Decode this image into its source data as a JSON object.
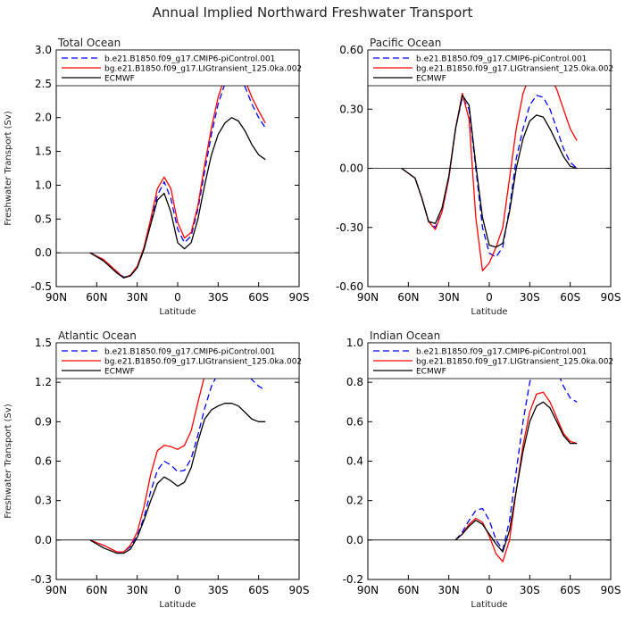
{
  "figure": {
    "title": "Annual Implied Northward Freshwater Transport"
  },
  "chart_data": [
    {
      "type": "line",
      "title": "Total Ocean",
      "xlabel": "Latitude",
      "ylabel": "Freshwater Transport (Sv)",
      "xlim": [
        90,
        -90
      ],
      "ylim": [
        -0.5,
        3.0
      ],
      "xticks": [
        90,
        60,
        30,
        0,
        -30,
        -60,
        -90
      ],
      "xtick_labels": [
        "90N",
        "60N",
        "30N",
        "0",
        "30S",
        "60S",
        "90S"
      ],
      "yticks": [
        -0.5,
        0.0,
        0.5,
        1.0,
        1.5,
        2.0,
        2.5,
        3.0
      ],
      "ytick_labels": [
        "-0.5",
        "0.0",
        "0.5",
        "1.0",
        "1.5",
        "2.0",
        "2.5",
        "3.0"
      ],
      "legend_position": "top",
      "series": [
        {
          "name": "b.e21.B1850.f09_g17.CMIP6-piControl.001",
          "color": "#0000ff",
          "dash": "dashed",
          "x": [
            65,
            55,
            45,
            40,
            35,
            30,
            25,
            20,
            15,
            10,
            5,
            0,
            -5,
            -10,
            -15,
            -20,
            -25,
            -30,
            -35,
            -40,
            -45,
            -50,
            -55,
            -60,
            -65
          ],
          "y": [
            0.0,
            -0.1,
            -0.28,
            -0.36,
            -0.34,
            -0.22,
            0.05,
            0.45,
            0.85,
            1.05,
            0.8,
            0.35,
            0.15,
            0.25,
            0.65,
            1.2,
            1.75,
            2.2,
            2.5,
            2.66,
            2.64,
            2.45,
            2.2,
            2.0,
            1.85
          ]
        },
        {
          "name": "bg.e21.B1850.f09_g17.LIGtransient_125.0ka.002",
          "color": "#ff0000",
          "dash": "solid",
          "x": [
            65,
            55,
            45,
            40,
            35,
            30,
            25,
            20,
            15,
            10,
            5,
            0,
            -5,
            -10,
            -15,
            -20,
            -25,
            -30,
            -35,
            -40,
            -45,
            -50,
            -55,
            -60,
            -65
          ],
          "y": [
            0.0,
            -0.1,
            -0.28,
            -0.37,
            -0.33,
            -0.2,
            0.08,
            0.5,
            0.95,
            1.12,
            0.95,
            0.45,
            0.22,
            0.3,
            0.7,
            1.3,
            1.85,
            2.3,
            2.6,
            2.75,
            2.72,
            2.55,
            2.3,
            2.1,
            1.92
          ]
        },
        {
          "name": "ECMWF",
          "color": "#000000",
          "dash": "solid",
          "x": [
            65,
            55,
            45,
            40,
            35,
            30,
            25,
            20,
            15,
            10,
            5,
            0,
            -5,
            -10,
            -15,
            -20,
            -25,
            -30,
            -35,
            -40,
            -45,
            -50,
            -55,
            -60,
            -65
          ],
          "y": [
            0.0,
            -0.12,
            -0.3,
            -0.37,
            -0.34,
            -0.22,
            0.05,
            0.42,
            0.78,
            0.88,
            0.6,
            0.15,
            0.06,
            0.15,
            0.5,
            1.0,
            1.45,
            1.75,
            1.92,
            2.0,
            1.95,
            1.8,
            1.6,
            1.45,
            1.38
          ]
        }
      ]
    },
    {
      "type": "line",
      "title": "Pacific Ocean",
      "xlabel": "Latitude",
      "ylabel": "",
      "xlim": [
        90,
        -90
      ],
      "ylim": [
        -0.6,
        0.6
      ],
      "xticks": [
        90,
        60,
        30,
        0,
        -30,
        -60,
        -90
      ],
      "xtick_labels": [
        "90N",
        "60N",
        "30N",
        "0",
        "30S",
        "60S",
        "90S"
      ],
      "yticks": [
        -0.6,
        -0.3,
        0.0,
        0.3,
        0.6
      ],
      "ytick_labels": [
        "-0.60",
        "-0.30",
        "0.00",
        "0.30",
        "0.60"
      ],
      "legend_position": "top",
      "series": [
        {
          "name": "b.e21.B1850.f09_g17.CMIP6-piControl.001",
          "color": "#0000ff",
          "dash": "dashed",
          "x": [
            65,
            55,
            50,
            45,
            40,
            35,
            30,
            25,
            20,
            15,
            10,
            5,
            0,
            -5,
            -10,
            -15,
            -20,
            -25,
            -30,
            -35,
            -40,
            -45,
            -50,
            -55,
            -60,
            -65
          ],
          "y": [
            0.0,
            -0.05,
            -0.15,
            -0.27,
            -0.3,
            -0.22,
            -0.05,
            0.2,
            0.36,
            0.3,
            0.0,
            -0.3,
            -0.43,
            -0.45,
            -0.4,
            -0.2,
            0.05,
            0.2,
            0.32,
            0.37,
            0.36,
            0.3,
            0.2,
            0.1,
            0.03,
            0.0
          ]
        },
        {
          "name": "bg.e21.B1850.f09_g17.LIGtransient_125.0ka.002",
          "color": "#ff0000",
          "dash": "solid",
          "x": [
            65,
            55,
            50,
            45,
            40,
            35,
            30,
            25,
            20,
            15,
            10,
            5,
            0,
            -5,
            -10,
            -15,
            -20,
            -25,
            -30,
            -35,
            -40,
            -45,
            -50,
            -55,
            -60,
            -65
          ],
          "y": [
            0.0,
            -0.05,
            -0.15,
            -0.27,
            -0.31,
            -0.22,
            -0.05,
            0.2,
            0.38,
            0.25,
            -0.25,
            -0.52,
            -0.48,
            -0.4,
            -0.3,
            -0.05,
            0.2,
            0.38,
            0.47,
            0.51,
            0.51,
            0.47,
            0.4,
            0.3,
            0.2,
            0.14
          ]
        },
        {
          "name": "ECMWF",
          "color": "#000000",
          "dash": "solid",
          "x": [
            65,
            55,
            50,
            45,
            40,
            35,
            30,
            25,
            20,
            15,
            10,
            5,
            0,
            -5,
            -10,
            -15,
            -20,
            -25,
            -30,
            -35,
            -40,
            -45,
            -50,
            -55,
            -60,
            -65
          ],
          "y": [
            0.0,
            -0.05,
            -0.15,
            -0.27,
            -0.28,
            -0.2,
            -0.04,
            0.2,
            0.37,
            0.32,
            0.02,
            -0.25,
            -0.39,
            -0.4,
            -0.38,
            -0.22,
            0.0,
            0.15,
            0.24,
            0.27,
            0.26,
            0.2,
            0.13,
            0.06,
            0.01,
            0.0
          ]
        }
      ]
    },
    {
      "type": "line",
      "title": "Atlantic Ocean",
      "xlabel": "Latitude",
      "ylabel": "Freshwater Transport (Sv)",
      "xlim": [
        90,
        -90
      ],
      "ylim": [
        -0.3,
        1.5
      ],
      "xticks": [
        90,
        60,
        30,
        0,
        -30,
        -60,
        -90
      ],
      "xtick_labels": [
        "90N",
        "60N",
        "30N",
        "0",
        "30S",
        "60S",
        "90S"
      ],
      "yticks": [
        -0.3,
        0.0,
        0.3,
        0.6,
        0.9,
        1.2,
        1.5
      ],
      "ytick_labels": [
        "-0.3",
        "0.0",
        "0.3",
        "0.6",
        "0.9",
        "1.2",
        "1.5"
      ],
      "legend_position": "top",
      "series": [
        {
          "name": "b.e21.B1850.f09_g17.CMIP6-piControl.001",
          "color": "#0000ff",
          "dash": "dashed",
          "x": [
            65,
            55,
            45,
            40,
            35,
            30,
            25,
            20,
            15,
            10,
            5,
            0,
            -5,
            -10,
            -15,
            -20,
            -25,
            -30,
            -35,
            -40,
            -45,
            -50,
            -55,
            -60,
            -65
          ],
          "y": [
            0.0,
            -0.04,
            -0.09,
            -0.09,
            -0.05,
            0.03,
            0.17,
            0.37,
            0.53,
            0.6,
            0.57,
            0.52,
            0.53,
            0.62,
            0.8,
            1.0,
            1.17,
            1.27,
            1.31,
            1.33,
            1.32,
            1.28,
            1.22,
            1.17,
            1.14
          ]
        },
        {
          "name": "bg.e21.B1850.f09_g17.LIGtransient_125.0ka.002",
          "color": "#ff0000",
          "dash": "solid",
          "x": [
            65,
            55,
            45,
            40,
            35,
            30,
            25,
            20,
            15,
            10,
            5,
            0,
            -5,
            -10,
            -15,
            -20,
            -25,
            -30,
            -35,
            -40,
            -45,
            -50,
            -55,
            -60,
            -65
          ],
          "y": [
            0.0,
            -0.04,
            -0.09,
            -0.09,
            -0.04,
            0.06,
            0.25,
            0.5,
            0.68,
            0.72,
            0.71,
            0.69,
            0.72,
            0.83,
            1.05,
            1.25,
            1.38,
            1.44,
            1.46,
            1.47,
            1.45,
            1.4,
            1.35,
            1.29,
            1.26
          ]
        },
        {
          "name": "ECMWF",
          "color": "#000000",
          "dash": "solid",
          "x": [
            65,
            55,
            45,
            40,
            35,
            30,
            25,
            20,
            15,
            10,
            5,
            0,
            -5,
            -10,
            -15,
            -20,
            -25,
            -30,
            -35,
            -40,
            -45,
            -50,
            -55,
            -60,
            -65
          ],
          "y": [
            0.0,
            -0.06,
            -0.1,
            -0.1,
            -0.07,
            0.02,
            0.15,
            0.3,
            0.43,
            0.48,
            0.45,
            0.41,
            0.44,
            0.55,
            0.75,
            0.92,
            0.99,
            1.02,
            1.04,
            1.04,
            1.02,
            0.97,
            0.92,
            0.9,
            0.9
          ]
        }
      ]
    },
    {
      "type": "line",
      "title": "Indian Ocean",
      "xlabel": "Latitude",
      "ylabel": "",
      "xlim": [
        90,
        -90
      ],
      "ylim": [
        -0.2,
        1.0
      ],
      "xticks": [
        90,
        60,
        30,
        0,
        -30,
        -60,
        -90
      ],
      "xtick_labels": [
        "90N",
        "60N",
        "30N",
        "0",
        "30S",
        "60S",
        "90S"
      ],
      "yticks": [
        -0.2,
        0.0,
        0.2,
        0.4,
        0.6,
        0.8,
        1.0
      ],
      "ytick_labels": [
        "-0.2",
        "0.0",
        "0.2",
        "0.4",
        "0.6",
        "0.8",
        "1.0"
      ],
      "legend_position": "top",
      "series": [
        {
          "name": "b.e21.B1850.f09_g17.CMIP6-piControl.001",
          "color": "#0000ff",
          "dash": "dashed",
          "x": [
            25,
            20,
            15,
            10,
            5,
            0,
            -5,
            -10,
            -15,
            -20,
            -25,
            -30,
            -35,
            -40,
            -45,
            -50,
            -55,
            -60,
            -65
          ],
          "y": [
            0.0,
            0.04,
            0.1,
            0.15,
            0.16,
            0.1,
            0.0,
            -0.05,
            0.1,
            0.35,
            0.6,
            0.8,
            0.92,
            0.96,
            0.93,
            0.86,
            0.78,
            0.72,
            0.7
          ]
        },
        {
          "name": "bg.e21.B1850.f09_g17.LIGtransient_125.0ka.002",
          "color": "#ff0000",
          "dash": "solid",
          "x": [
            25,
            20,
            15,
            10,
            5,
            0,
            -5,
            -10,
            -15,
            -20,
            -25,
            -30,
            -35,
            -40,
            -45,
            -50,
            -55,
            -60,
            -65
          ],
          "y": [
            0.0,
            0.03,
            0.08,
            0.11,
            0.09,
            0.02,
            -0.07,
            -0.11,
            0.0,
            0.25,
            0.48,
            0.65,
            0.74,
            0.75,
            0.7,
            0.62,
            0.54,
            0.5,
            0.49
          ]
        },
        {
          "name": "ECMWF",
          "color": "#000000",
          "dash": "solid",
          "x": [
            25,
            20,
            15,
            10,
            5,
            0,
            -5,
            -10,
            -15,
            -20,
            -25,
            -30,
            -35,
            -40,
            -45,
            -50,
            -55,
            -60,
            -65
          ],
          "y": [
            0.0,
            0.03,
            0.07,
            0.1,
            0.08,
            0.03,
            -0.02,
            -0.06,
            0.05,
            0.25,
            0.45,
            0.6,
            0.68,
            0.7,
            0.67,
            0.6,
            0.53,
            0.49,
            0.49
          ]
        }
      ]
    }
  ]
}
